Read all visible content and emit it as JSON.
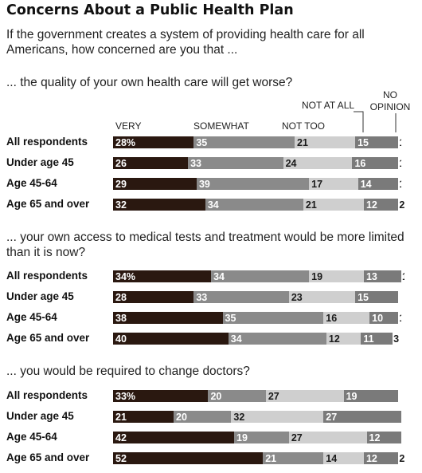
{
  "chart_data": {
    "type": "bar",
    "orientation": "horizontal",
    "stacked": true,
    "title": "Concerns About a Public Health Plan",
    "subtitle": "If the government creates a system of providing health care for all Americans, how concerned are you that ...",
    "legend": [
      "VERY",
      "SOMEWHAT",
      "NOT TOO",
      "NOT AT ALL",
      "NO OPINION"
    ],
    "legend_placement": "top",
    "colors": {
      "VERY": "#2a1810",
      "SOMEWHAT": "#8a8a8a",
      "NOT TOO": "#cfcfcf",
      "NOT AT ALL": "#7a7a7a",
      "NO OPINION": "#ffffff"
    },
    "panels": [
      {
        "question": "... the quality of your own health care will get worse?",
        "categories": [
          "All respondents",
          "Under age 45",
          "Age 45-64",
          "Age 65 and over"
        ],
        "series": [
          {
            "name": "VERY",
            "values": [
              28,
              26,
              29,
              32
            ],
            "labels": [
              "28%",
              "26",
              "29",
              "32"
            ]
          },
          {
            "name": "SOMEWHAT",
            "values": [
              35,
              33,
              39,
              34
            ],
            "labels": [
              "35",
              "33",
              "39",
              "34"
            ]
          },
          {
            "name": "NOT TOO",
            "values": [
              21,
              24,
              17,
              21
            ],
            "labels": [
              "21",
              "24",
              "17",
              "21"
            ]
          },
          {
            "name": "NOT AT ALL",
            "values": [
              15,
              16,
              14,
              12
            ],
            "labels": [
              "15",
              "16",
              "14",
              "12"
            ]
          },
          {
            "name": "NO OPINION",
            "values": [
              1,
              1,
              1,
              2
            ],
            "labels": [
              "1",
              "1",
              "1",
              "2"
            ]
          }
        ]
      },
      {
        "question": "... your own access to medical tests and treatment would be more limited than it is now?",
        "categories": [
          "All respondents",
          "Under age 45",
          "Age 45-64",
          "Age 65 and over"
        ],
        "series": [
          {
            "name": "VERY",
            "values": [
              34,
              28,
              38,
              40
            ],
            "labels": [
              "34%",
              "28",
              "38",
              "40"
            ]
          },
          {
            "name": "SOMEWHAT",
            "values": [
              34,
              33,
              35,
              34
            ],
            "labels": [
              "34",
              "33",
              "35",
              "34"
            ]
          },
          {
            "name": "NOT TOO",
            "values": [
              19,
              23,
              16,
              12
            ],
            "labels": [
              "19",
              "23",
              "16",
              "12"
            ]
          },
          {
            "name": "NOT AT ALL",
            "values": [
              13,
              15,
              10,
              11
            ],
            "labels": [
              "13",
              "15",
              "10",
              "11"
            ]
          },
          {
            "name": "NO OPINION",
            "values": [
              1,
              0,
              1,
              3
            ],
            "labels": [
              "1",
              "",
              "1",
              "3"
            ]
          }
        ]
      },
      {
        "question": "... you would be required to change doctors?",
        "categories": [
          "All respondents",
          "Under age 45",
          "Age 45-64",
          "Age 65 and over"
        ],
        "series": [
          {
            "name": "VERY",
            "values": [
              33,
              21,
              42,
              52
            ],
            "labels": [
              "33%",
              "21",
              "42",
              "52"
            ]
          },
          {
            "name": "SOMEWHAT",
            "values": [
              20,
              20,
              19,
              21
            ],
            "labels": [
              "20",
              "20",
              "19",
              "21"
            ]
          },
          {
            "name": "NOT TOO",
            "values": [
              27,
              32,
              27,
              14
            ],
            "labels": [
              "27",
              "32",
              "27",
              "14"
            ]
          },
          {
            "name": "NOT AT ALL",
            "values": [
              19,
              27,
              12,
              12
            ],
            "labels": [
              "19",
              "27",
              "12",
              "12"
            ]
          },
          {
            "name": "NO OPINION",
            "values": [
              0,
              0,
              0,
              2
            ],
            "labels": [
              "",
              "",
              "",
              "2"
            ]
          }
        ]
      }
    ]
  }
}
